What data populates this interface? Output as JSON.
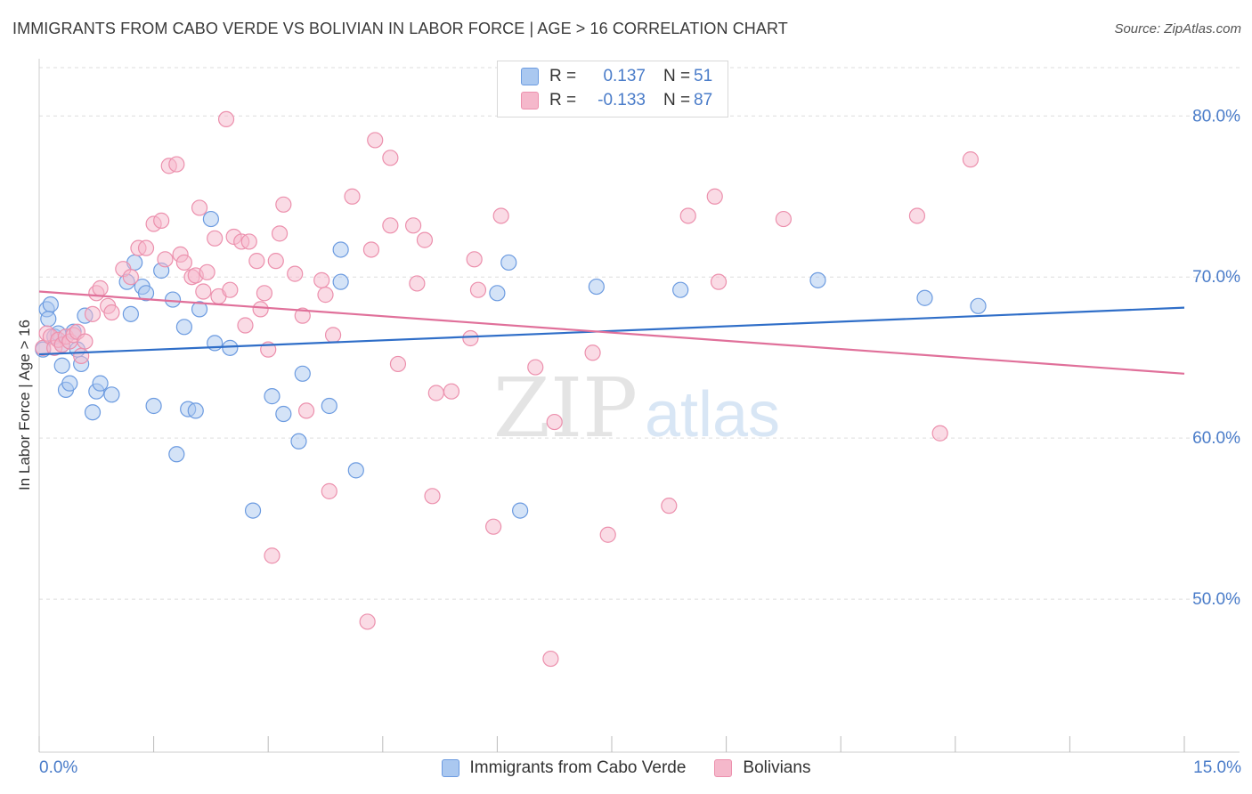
{
  "header": {
    "title": "IMMIGRANTS FROM CABO VERDE VS BOLIVIAN IN LABOR FORCE | AGE > 16 CORRELATION CHART",
    "source": "Source: ZipAtlas.com"
  },
  "watermark": {
    "zip": "ZIP",
    "atlas": "atlas"
  },
  "colors": {
    "blue_fill": "#aac8f0",
    "blue_stroke": "#6c9be0",
    "blue_line": "#2f6ec8",
    "pink_fill": "#f5b8cb",
    "pink_stroke": "#ec90ad",
    "pink_line": "#e0709a",
    "tick_text": "#4a7cc9",
    "grid": "#dddddd"
  },
  "legend": {
    "rows": [
      {
        "r_label": "R =",
        "r_value": "0.137",
        "n_label": "N =",
        "n_value": "51"
      },
      {
        "r_label": "R =",
        "r_value": "-0.133",
        "n_label": "N =",
        "n_value": "87"
      }
    ]
  },
  "bottom_legend": {
    "items": [
      {
        "label": "Immigrants from Cabo Verde"
      },
      {
        "label": "Bolivians"
      }
    ]
  },
  "chart_data": {
    "type": "scatter",
    "title": "IMMIGRANTS FROM CABO VERDE VS BOLIVIAN IN LABOR FORCE | AGE > 16 CORRELATION CHART",
    "xlabel": "",
    "ylabel": "In Labor Force | Age > 16",
    "xlim": [
      0,
      15
    ],
    "ylim": [
      40.5,
      83
    ],
    "x_tick_labels": {
      "left": "0.0%",
      "right": "15.0%"
    },
    "y_ticks": [
      {
        "value": 80,
        "label": "80.0%"
      },
      {
        "value": 70,
        "label": "70.0%"
      },
      {
        "value": 60,
        "label": "60.0%"
      },
      {
        "value": 50,
        "label": "50.0%"
      }
    ],
    "series": [
      {
        "name": "Immigrants from Cabo Verde",
        "color": "blue",
        "R": 0.137,
        "N": 51,
        "trend": {
          "x": [
            0,
            15
          ],
          "y": [
            65.2,
            68.1
          ]
        },
        "points": [
          [
            0.1,
            68.0
          ],
          [
            0.15,
            68.3
          ],
          [
            0.2,
            66.3
          ],
          [
            0.25,
            66.5
          ],
          [
            0.3,
            65.8
          ],
          [
            0.3,
            64.5
          ],
          [
            0.35,
            63.0
          ],
          [
            0.4,
            63.4
          ],
          [
            0.45,
            66.6
          ],
          [
            0.5,
            65.5
          ],
          [
            0.55,
            64.6
          ],
          [
            0.6,
            67.6
          ],
          [
            0.7,
            61.6
          ],
          [
            0.75,
            62.9
          ],
          [
            0.8,
            63.4
          ],
          [
            0.95,
            62.7
          ],
          [
            1.15,
            69.7
          ],
          [
            1.2,
            67.7
          ],
          [
            1.25,
            70.9
          ],
          [
            1.35,
            69.4
          ],
          [
            1.4,
            69.0
          ],
          [
            1.5,
            62.0
          ],
          [
            1.6,
            70.4
          ],
          [
            1.75,
            68.6
          ],
          [
            1.8,
            59.0
          ],
          [
            1.9,
            66.9
          ],
          [
            1.95,
            61.8
          ],
          [
            2.05,
            61.7
          ],
          [
            2.1,
            68.0
          ],
          [
            2.25,
            73.6
          ],
          [
            2.3,
            65.9
          ],
          [
            2.5,
            65.6
          ],
          [
            2.8,
            55.5
          ],
          [
            3.05,
            62.6
          ],
          [
            3.2,
            61.5
          ],
          [
            3.4,
            59.8
          ],
          [
            3.45,
            64.0
          ],
          [
            3.8,
            62.0
          ],
          [
            3.95,
            69.7
          ],
          [
            3.95,
            71.7
          ],
          [
            4.15,
            58.0
          ],
          [
            6.0,
            69.0
          ],
          [
            6.15,
            70.9
          ],
          [
            6.3,
            55.5
          ],
          [
            7.3,
            69.4
          ],
          [
            8.4,
            69.2
          ],
          [
            10.2,
            69.8
          ],
          [
            11.6,
            68.7
          ],
          [
            12.3,
            68.2
          ],
          [
            0.05,
            65.5
          ],
          [
            0.12,
            67.4
          ]
        ]
      },
      {
        "name": "Bolivians",
        "color": "pink",
        "R": -0.133,
        "N": 87,
        "trend": {
          "x": [
            0,
            15
          ],
          "y": [
            69.1,
            64.0
          ]
        },
        "points": [
          [
            0.05,
            65.6
          ],
          [
            0.1,
            66.5
          ],
          [
            0.15,
            66.3
          ],
          [
            0.2,
            65.6
          ],
          [
            0.25,
            66.1
          ],
          [
            0.3,
            65.8
          ],
          [
            0.35,
            66.3
          ],
          [
            0.4,
            66.0
          ],
          [
            0.45,
            66.4
          ],
          [
            0.5,
            66.6
          ],
          [
            0.55,
            65.1
          ],
          [
            0.6,
            66.0
          ],
          [
            0.7,
            67.7
          ],
          [
            0.75,
            69.0
          ],
          [
            0.8,
            69.3
          ],
          [
            0.9,
            68.2
          ],
          [
            0.95,
            67.8
          ],
          [
            1.1,
            70.5
          ],
          [
            1.2,
            70.0
          ],
          [
            1.3,
            71.8
          ],
          [
            1.4,
            71.8
          ],
          [
            1.5,
            73.3
          ],
          [
            1.6,
            73.5
          ],
          [
            1.65,
            71.1
          ],
          [
            1.7,
            76.9
          ],
          [
            1.8,
            77.0
          ],
          [
            1.85,
            71.4
          ],
          [
            1.9,
            70.9
          ],
          [
            2.0,
            70.0
          ],
          [
            2.05,
            70.1
          ],
          [
            2.1,
            74.3
          ],
          [
            2.15,
            69.1
          ],
          [
            2.2,
            70.3
          ],
          [
            2.3,
            72.4
          ],
          [
            2.35,
            68.8
          ],
          [
            2.45,
            79.8
          ],
          [
            2.5,
            69.2
          ],
          [
            2.55,
            72.5
          ],
          [
            2.65,
            72.2
          ],
          [
            2.7,
            67.0
          ],
          [
            2.75,
            72.2
          ],
          [
            2.85,
            71.0
          ],
          [
            2.9,
            68.0
          ],
          [
            2.95,
            69.0
          ],
          [
            3.0,
            65.5
          ],
          [
            3.1,
            71.0
          ],
          [
            3.15,
            72.7
          ],
          [
            3.2,
            74.5
          ],
          [
            3.35,
            70.2
          ],
          [
            3.45,
            67.6
          ],
          [
            3.5,
            61.7
          ],
          [
            3.7,
            69.8
          ],
          [
            3.75,
            68.9
          ],
          [
            3.8,
            56.7
          ],
          [
            3.85,
            66.4
          ],
          [
            4.1,
            75.0
          ],
          [
            4.35,
            71.7
          ],
          [
            4.4,
            78.5
          ],
          [
            4.6,
            73.2
          ],
          [
            4.6,
            77.4
          ],
          [
            4.7,
            64.6
          ],
          [
            4.9,
            73.2
          ],
          [
            4.95,
            69.6
          ],
          [
            5.05,
            72.3
          ],
          [
            5.15,
            56.4
          ],
          [
            5.2,
            62.8
          ],
          [
            5.4,
            62.9
          ],
          [
            5.65,
            66.2
          ],
          [
            5.7,
            71.1
          ],
          [
            5.75,
            69.2
          ],
          [
            5.95,
            54.5
          ],
          [
            6.05,
            73.8
          ],
          [
            6.5,
            64.4
          ],
          [
            6.7,
            46.3
          ],
          [
            6.75,
            61.0
          ],
          [
            7.25,
            65.3
          ],
          [
            7.45,
            54.0
          ],
          [
            8.25,
            55.8
          ],
          [
            8.5,
            73.8
          ],
          [
            8.85,
            75.0
          ],
          [
            8.9,
            69.7
          ],
          [
            9.75,
            73.6
          ],
          [
            11.5,
            73.8
          ],
          [
            11.8,
            60.3
          ],
          [
            12.2,
            77.3
          ],
          [
            4.3,
            48.6
          ],
          [
            3.05,
            52.7
          ]
        ]
      }
    ]
  }
}
